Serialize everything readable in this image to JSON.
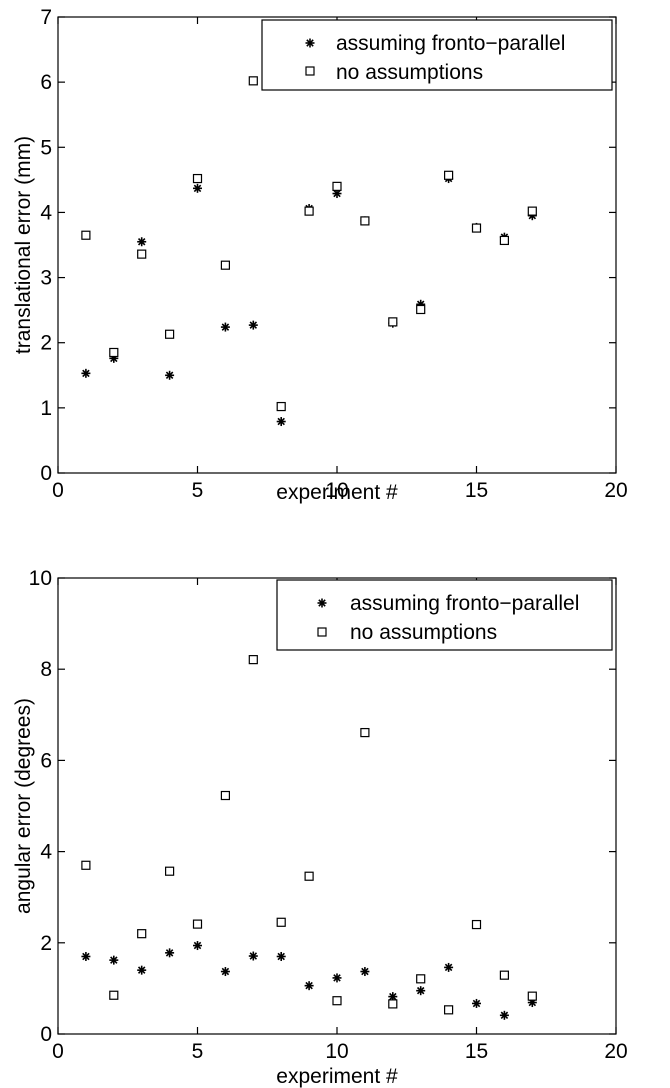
{
  "chart_data": [
    {
      "type": "scatter",
      "title": "",
      "xlabel": "experiment #",
      "ylabel": "translational error (mm)",
      "xlim": [
        0,
        20
      ],
      "ylim": [
        0,
        7
      ],
      "xticks": [
        "0",
        "5",
        "10",
        "15",
        "20"
      ],
      "yticks": [
        "0",
        "1",
        "2",
        "3",
        "4",
        "5",
        "6",
        "7"
      ],
      "legend_position": "top-right",
      "series": [
        {
          "name": "assuming fronto−parallel",
          "marker": "asterisk",
          "x": [
            1,
            2,
            3,
            4,
            5,
            6,
            7,
            8,
            9,
            10,
            11,
            12,
            13,
            14,
            15,
            16,
            17
          ],
          "y": [
            1.53,
            1.76,
            3.55,
            1.5,
            4.37,
            2.24,
            2.27,
            0.79,
            4.06,
            4.29,
            3.87,
            2.3,
            2.59,
            4.52,
            3.77,
            3.62,
            3.95
          ]
        },
        {
          "name": "no assumptions",
          "marker": "square",
          "x": [
            1,
            2,
            3,
            4,
            5,
            6,
            7,
            8,
            9,
            10,
            11,
            12,
            13,
            14,
            15,
            16,
            17
          ],
          "y": [
            3.65,
            1.85,
            3.36,
            2.13,
            4.52,
            3.19,
            6.02,
            1.02,
            4.02,
            4.4,
            3.87,
            2.32,
            2.51,
            4.57,
            3.76,
            3.57,
            4.02
          ]
        }
      ]
    },
    {
      "type": "scatter",
      "title": "",
      "xlabel": "experiment #",
      "ylabel": "angular error (degrees)",
      "xlim": [
        0,
        20
      ],
      "ylim": [
        0,
        10
      ],
      "xticks": [
        "0",
        "5",
        "10",
        "15",
        "20"
      ],
      "yticks": [
        "0",
        "2",
        "4",
        "6",
        "8",
        "10"
      ],
      "legend_position": "top-right",
      "series": [
        {
          "name": "assuming fronto−parallel",
          "marker": "asterisk",
          "x": [
            1,
            2,
            3,
            4,
            5,
            6,
            7,
            8,
            9,
            10,
            11,
            12,
            13,
            14,
            15,
            16,
            17
          ],
          "y": [
            1.7,
            1.62,
            1.4,
            1.78,
            1.94,
            1.37,
            1.71,
            1.7,
            1.06,
            1.23,
            1.37,
            0.82,
            0.95,
            1.46,
            0.67,
            0.41,
            0.69
          ]
        },
        {
          "name": "no assumptions",
          "marker": "square",
          "x": [
            1,
            2,
            3,
            4,
            5,
            6,
            7,
            8,
            9,
            10,
            11,
            12,
            13,
            14,
            15,
            16,
            17
          ],
          "y": [
            3.7,
            0.85,
            2.2,
            3.57,
            2.41,
            5.23,
            8.21,
            2.45,
            3.46,
            0.73,
            6.61,
            0.66,
            1.21,
            0.53,
            2.4,
            1.29,
            0.83
          ]
        }
      ]
    }
  ]
}
